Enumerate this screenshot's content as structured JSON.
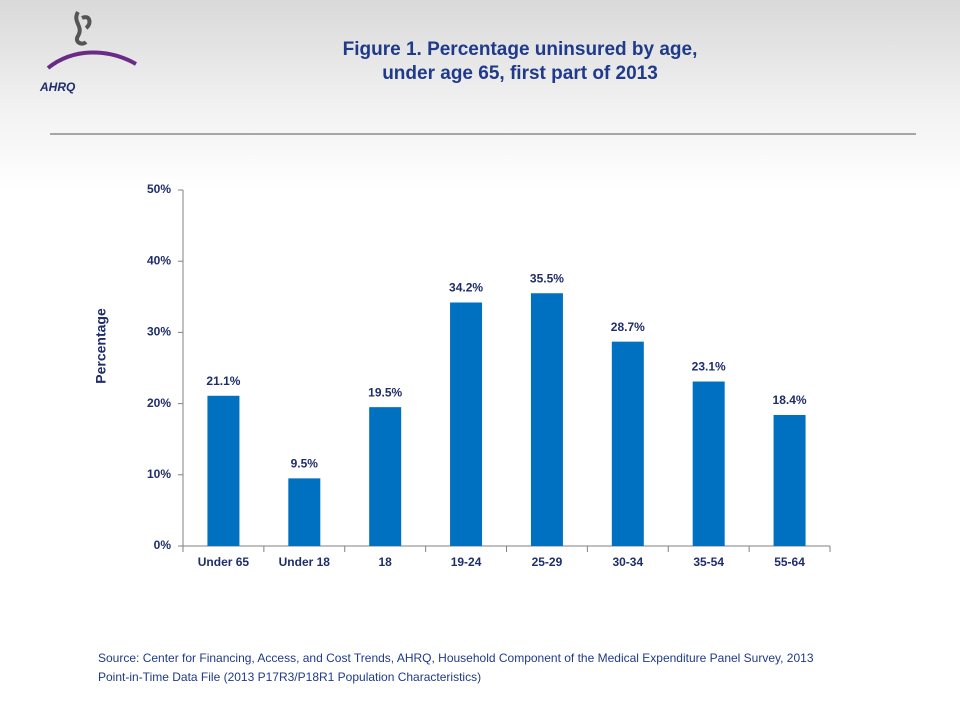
{
  "header": {
    "logo": "AHRQ"
  },
  "chart_data": {
    "type": "bar",
    "title": [
      "Figure 1. Percentage uninsured by age,",
      "under age 65, first part of 2013"
    ],
    "y_label": "Percentage",
    "categories": [
      "Under 65",
      "Under 18",
      "18",
      "19-24",
      "25-29",
      "30-34",
      "35-54",
      "55-64"
    ],
    "values": [
      21.1,
      9.5,
      19.5,
      34.2,
      35.5,
      28.7,
      23.1,
      18.4
    ],
    "value_labels": [
      "21.1%",
      "9.5%",
      "19.5%",
      "34.2%",
      "35.5%",
      "28.7%",
      "23.1%",
      "18.4%"
    ],
    "color": "#0070c0",
    "ylim": [
      0,
      50
    ],
    "yticks": [
      {
        "value": 0,
        "label": "0%"
      },
      {
        "value": 10,
        "label": "10%"
      },
      {
        "value": 20,
        "label": "20%"
      },
      {
        "value": 30,
        "label": "30%"
      },
      {
        "value": 40,
        "label": "40%"
      },
      {
        "value": 50,
        "label": "50%"
      }
    ],
    "grid": false,
    "source": "Source: Center for Financing, Access, and Cost Trends, AHRQ, Household Component of the Medical Expenditure Panel Survey, 2013 Point-in-Time Data File (2013 P17R3/P18R1 Population Characteristics)"
  }
}
